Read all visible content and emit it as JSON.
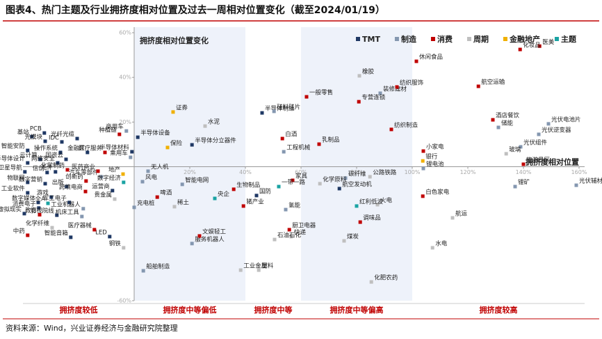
{
  "chart_data": {
    "type": "scatter",
    "title": "图表4、热门主题及行业拥挤度相对位置及过去一周相对位置变化（截至2024/01/19）",
    "source": "资料来源：Wind，兴业证券经济与金融研究院整理",
    "xlabel": "拥挤度相对位置",
    "ylabel": "拥挤度相对位置变化",
    "xlim": [
      -40,
      162
    ],
    "ylim": [
      -60,
      60
    ],
    "xticks": [
      {
        "value": 20,
        "label": "20%"
      },
      {
        "value": 40,
        "label": "40%"
      },
      {
        "value": 60,
        "label": "60%"
      },
      {
        "value": 80,
        "label": "80%"
      },
      {
        "value": 100,
        "label": "100%"
      },
      {
        "value": 120,
        "label": "120%"
      },
      {
        "value": 140,
        "label": "140%"
      },
      {
        "value": 160,
        "label": "160%"
      }
    ],
    "yticks": [
      {
        "value": 60,
        "label": "60%"
      },
      {
        "value": 40,
        "label": "40%"
      },
      {
        "value": 20,
        "label": "20%"
      },
      {
        "value": -60,
        "label": "-60%"
      }
    ],
    "zones": [
      {
        "label": "拥挤度较低",
        "from": -40,
        "to": 0,
        "shaded": false
      },
      {
        "label": "拥挤度中等偏低",
        "from": 0,
        "to": 40,
        "shaded": true
      },
      {
        "label": "拥挤度中等",
        "from": 40,
        "to": 60,
        "shaded": false
      },
      {
        "label": "拥挤度中等偏高",
        "from": 60,
        "to": 100,
        "shaded": true
      },
      {
        "label": "拥挤度较高",
        "from": 100,
        "to": 162,
        "shaded": false
      }
    ],
    "series": [
      {
        "name": "TMT",
        "color": "#1f3864",
        "labels": [
          "半导体制造",
          "半导体分立器件",
          "半导体设备",
          "半导体材料",
          "国防",
          "航空发动机",
          "PCB",
          "基站",
          "光模块",
          "IDC",
          "光纤光缆",
          "智能安防",
          "操作系统",
          "金融IT",
          "云计算",
          "网络安全",
          "国资云",
          "半导体设计",
          "卫星导航",
          "信创",
          "元件",
          "物联网",
          "数字营销",
          "出版",
          "运营商",
          "工业软件",
          "游戏",
          "数字媒体",
          "消费电子",
          "虚拟现实",
          "影视院线",
          "军工电子",
          "智能音箱",
          "LED"
        ],
        "x": [
          46,
          20.8,
          1.3,
          -0.8,
          44,
          73.8,
          -32.3,
          -36.8,
          -32,
          -26,
          -20.5,
          -38.3,
          -26.5,
          -16.8,
          -33.8,
          -27.5,
          -24.5,
          -38.3,
          -39.3,
          -31.3,
          -28.3,
          -38.3,
          -32,
          -24.3,
          -7.8,
          -38.3,
          -29.8,
          -34.5,
          -34.3,
          -39.5,
          -27.8,
          -23.3,
          -22.8,
          -8.8
        ],
        "values": [
          24.1,
          9.8,
          13.2,
          6.7,
          -12.9,
          -9.8,
          15.1,
          13.5,
          11.4,
          11.1,
          12.6,
          7.3,
          6.4,
          6.4,
          3.3,
          1.7,
          3.3,
          1.7,
          -2.3,
          -2.6,
          -2.3,
          -7,
          -7.6,
          -8.9,
          -10.7,
          -11.7,
          -13.6,
          -16,
          -18.5,
          -21,
          -21.7,
          -16,
          -31.6,
          -31.3
        ]
      },
      {
        "name": "制造",
        "color": "#8497b0",
        "labels": [
          "光伏电池片",
          "储能",
          "光伏逆变器",
          "光伏组件",
          "锂电池",
          "锂矿",
          "光伏辅材",
          "装修建材",
          "硅料硅片",
          "工程机械",
          "无人机",
          "风电",
          "智能电网",
          "充电桩",
          "碳纤维",
          "氢能",
          "服务机器人",
          "船舶制造",
          "商用车",
          "乘用车",
          "汽车零部件",
          "机床工具",
          "工业机器人"
        ],
        "x": [
          149,
          131,
          145.5,
          139,
          104,
          137,
          159,
          88.5,
          50.3,
          53.8,
          5,
          3,
          17.3,
          0,
          76,
          54.5,
          20.8,
          3.3,
          -2.8,
          -1.3,
          -11.8,
          -18.8,
          -18.3
        ],
        "values": [
          19.2,
          17.6,
          14.5,
          8.9,
          -0.8,
          -8.9,
          -8.3,
          32.9,
          24.8,
          6.7,
          -2,
          -6.7,
          -7.9,
          -18.2,
          -5.1,
          -19.2,
          -34.4,
          -46.6,
          16,
          4.2,
          -4.5,
          -22.3,
          -18.8
        ]
      },
      {
        "name": "消费",
        "color": "#c00000",
        "labels": [
          "医美",
          "化妆品",
          "休闲食品",
          "航空运输",
          "酒店餐饮",
          "旅游景区",
          "小家电",
          "白色家电",
          "一般零售",
          "纺织服饰",
          "专营连锁",
          "纺织制造",
          "白酒",
          "乳制品",
          "啤酒",
          "生物制品",
          "猪产业",
          "家具",
          "调味品",
          "厨卫电器",
          "文娱轻工",
          "种植链",
          "医疗服务",
          "化学制药",
          "医药商业",
          "创新药",
          "跨境电商",
          "教育",
          "医疗器械",
          "中药"
        ],
        "x": [
          145.8,
          138.8,
          101.5,
          123.8,
          129,
          140,
          104,
          103.8,
          62,
          94.5,
          80.8,
          92.5,
          53.3,
          66.5,
          8.3,
          35.8,
          39.3,
          57,
          81.3,
          55.8,
          23.5,
          -5.3,
          -10.5,
          -24,
          -13,
          -17.3,
          -17.5,
          -34,
          -14.3,
          -38.3
        ],
        "values": [
          54,
          52.5,
          47.2,
          36,
          21,
          1.1,
          7,
          -13.2,
          31.3,
          35.7,
          29.1,
          16.7,
          12.6,
          10.1,
          -13.6,
          -10.1,
          -17.6,
          -6.1,
          -24.8,
          -28.2,
          -31,
          14.5,
          6.4,
          -1.4,
          -2,
          -6.4,
          -11.1,
          -21.5,
          -28.2,
          -30.7
        ]
      },
      {
        "name": "周期",
        "color": "#bfbfbf",
        "labels": [
          "玻璃",
          "航运",
          "水电",
          "橡胶",
          "水泥",
          "稀土",
          "化学原料",
          "公路铁路",
          "火电",
          "快递",
          "石油石化",
          "煤炭",
          "化肥农药",
          "工业金属",
          "塑料",
          "贵金属",
          "化学纤维",
          "钢铁"
        ],
        "x": [
          133.8,
          114.5,
          107.3,
          81,
          25.5,
          14.5,
          66.8,
          84.8,
          87.5,
          56.5,
          50.5,
          75.5,
          85.3,
          38.3,
          44.8,
          -7,
          -29.5,
          -3.8
        ],
        "values": [
          5.8,
          -22.9,
          -36.3,
          40.7,
          18.2,
          -17.9,
          -7.6,
          -4.5,
          -17,
          -31.3,
          -32.6,
          -33.2,
          -51.6,
          -46.3,
          -46.3,
          -14.5,
          -27.3,
          -36.3
        ]
      },
      {
        "name": "金融地产",
        "color": "#f0b000",
        "labels": [
          "银行",
          "证券",
          "保险",
          "地产"
        ],
        "x": [
          103.8,
          14,
          12,
          -4
        ],
        "values": [
          2.6,
          24.5,
          8.6,
          -3.3
        ]
      },
      {
        "name": "主题",
        "color": "#1aa3a3",
        "labels": [
          "央企",
          "一带一路",
          "红利低波",
          "数字经济",
          "全A"
        ],
        "x": [
          29,
          52,
          80,
          -3.8,
          -31
        ],
        "values": [
          -14.2,
          -8.9,
          -17.6,
          -7,
          -16.4
        ]
      }
    ]
  }
}
